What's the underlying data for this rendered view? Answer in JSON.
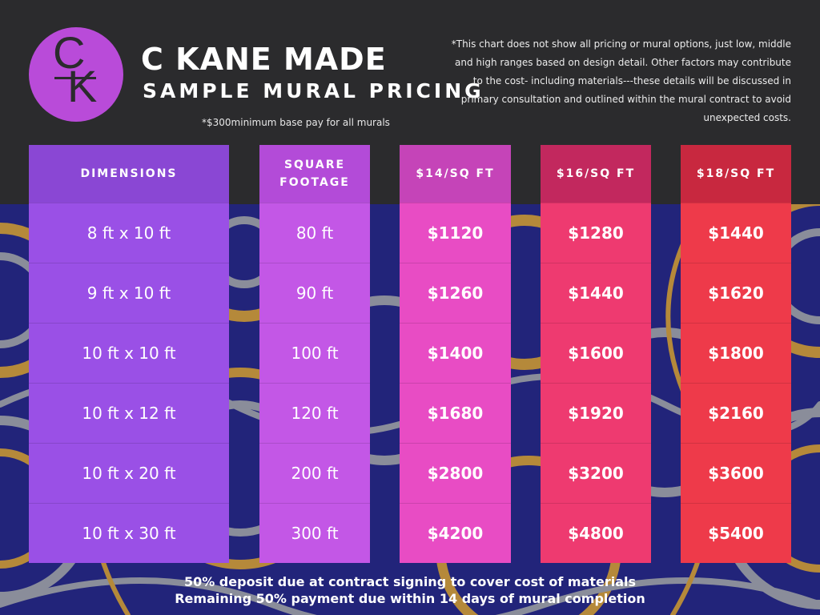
{
  "brand": {
    "logo_letters": [
      "C",
      "K"
    ],
    "name": "C KANE MADE",
    "subtitle": "SAMPLE MURAL PRICING",
    "minimum_note": "*$300minimum base pay for all murals"
  },
  "disclaimer": "*This chart does not show all pricing or mural options, just low, middle and high ranges based on design detail. Other factors may contribute to the cost- including materials---these details will be discussed in primary consultation and outlined within the mural contract to avoid unexpected costs.",
  "columns": [
    {
      "header": "DIMENSIONS",
      "values": [
        "8 ft x 10 ft",
        "9 ft x 10 ft",
        "10 ft x 10 ft",
        "10 ft x 12 ft",
        "10 ft x 20 ft",
        "10 ft x 30 ft"
      ],
      "header_color": "#8a47d4",
      "cell_color": "#9a50e6"
    },
    {
      "header": "SQUARE FOOTAGE",
      "values": [
        "80 ft",
        "90 ft",
        "100 ft",
        "120 ft",
        "200 ft",
        "300 ft"
      ],
      "header_color": "#b34bd8",
      "cell_color": "#c357e6"
    },
    {
      "header": "$14/SQ FT",
      "values": [
        "$1120",
        "$1260",
        "$1400",
        "$1680",
        "$2800",
        "$4200"
      ],
      "header_color": "#c544b8",
      "cell_color": "#e84cc4"
    },
    {
      "header": "$16/SQ FT",
      "values": [
        "$1280",
        "$1440",
        "$1600",
        "$1920",
        "$3200",
        "$4800"
      ],
      "header_color": "#c2285e",
      "cell_color": "#ee3a70"
    },
    {
      "header": "$18/SQ FT",
      "values": [
        "$1440",
        "$1620",
        "$1800",
        "$2160",
        "$3600",
        "$5400"
      ],
      "header_color": "#c8283f",
      "cell_color": "#ee3a4a"
    }
  ],
  "footer": {
    "line1": "50% deposit due at contract signing to cover cost of materials",
    "line2": "Remaining 50% payment due within 14 days of mural completion"
  },
  "colors": {
    "header_bg": "#2b2b2d",
    "logo": "#b94bd9",
    "pattern_bg": "#22247a"
  }
}
